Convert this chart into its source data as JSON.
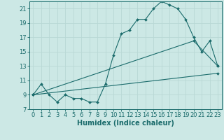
{
  "xlabel": "Humidex (Indice chaleur)",
  "bg_color": "#cce8e5",
  "grid_color": "#b8d8d5",
  "line_color": "#1a6b6b",
  "xlim_min": -0.5,
  "xlim_max": 23.5,
  "ylim_min": 7,
  "ylim_max": 22,
  "xticks": [
    0,
    1,
    2,
    3,
    4,
    5,
    6,
    7,
    8,
    9,
    10,
    11,
    12,
    13,
    14,
    15,
    16,
    17,
    18,
    19,
    20,
    21,
    22,
    23
  ],
  "yticks": [
    7,
    9,
    11,
    13,
    15,
    17,
    19,
    21
  ],
  "curve1_x": [
    0,
    1,
    2,
    3,
    4,
    5,
    6,
    7,
    8,
    9,
    10,
    11,
    12,
    13,
    14,
    15,
    16,
    17,
    18,
    19,
    20,
    21,
    22,
    23
  ],
  "curve1_y": [
    9.0,
    10.5,
    9.0,
    8.0,
    9.0,
    8.5,
    8.5,
    8.0,
    8.0,
    10.5,
    14.5,
    17.5,
    18.0,
    19.5,
    19.5,
    21.0,
    22.0,
    21.5,
    21.0,
    19.5,
    17.0,
    15.0,
    16.5,
    13.0
  ],
  "line2_x": [
    0,
    20,
    23
  ],
  "line2_y": [
    9.0,
    16.5,
    13.0
  ],
  "line3_x": [
    0,
    23
  ],
  "line3_y": [
    9.0,
    12.0
  ],
  "font_size": 6,
  "xlabel_font_size": 7,
  "marker_size": 2.0,
  "linewidth": 0.8
}
